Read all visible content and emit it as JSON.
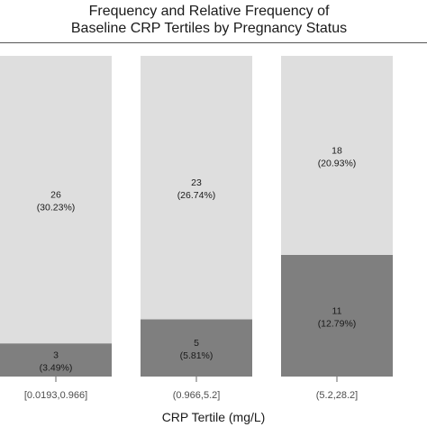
{
  "chart_data": {
    "type": "bar",
    "stacked": true,
    "normalized": true,
    "title_lines": [
      "Frequency and Relative Frequency of",
      "Baseline CRP Tertiles by Pregnancy Status"
    ],
    "xlabel": "CRP Tertile (mg/L)",
    "ylabel": "",
    "categories": [
      "[0.0193,0.966]",
      "(0.966,5.2]",
      "(5.2,28.2]"
    ],
    "series": [
      {
        "color": "#7f7f7f",
        "values": [
          3,
          5,
          11
        ],
        "labels": [
          "(3.49%)",
          "(5.81%)",
          "(12.79%)"
        ]
      },
      {
        "color": "#dedede",
        "values": [
          26,
          23,
          18
        ],
        "labels": [
          "(30.23%)",
          "(26.74%)",
          "(20.93%)"
        ]
      }
    ],
    "grid": false,
    "legend": "none"
  }
}
